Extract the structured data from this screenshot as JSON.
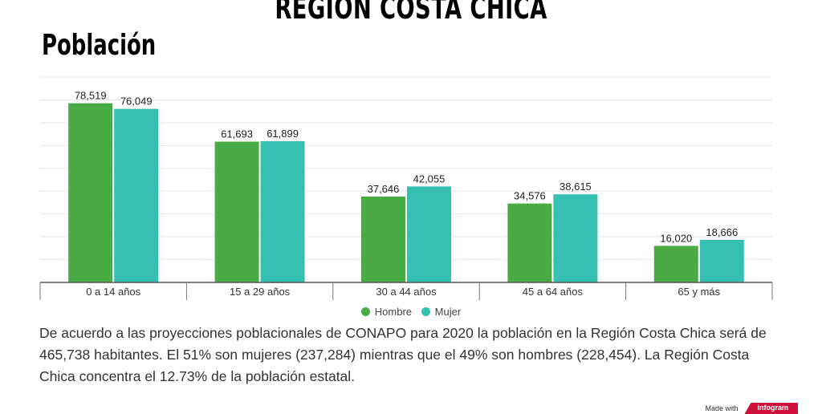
{
  "header": {
    "region_title": "REGION COSTA CHICA",
    "section_title": "Población"
  },
  "chart_data": {
    "type": "bar",
    "categories": [
      "0 a 14 años",
      "15 a 29 años",
      "30 a 44 años",
      "45 a 64 años",
      "65 y más"
    ],
    "series": [
      {
        "name": "Hombre",
        "values": [
          78519,
          61693,
          37646,
          34576,
          16020
        ],
        "color": "#4aab44"
      },
      {
        "name": "Mujer",
        "values": [
          76049,
          61899,
          42055,
          38615,
          18666
        ],
        "color": "#36bfb3"
      }
    ],
    "value_labels": [
      [
        "78,519",
        "61,693",
        "37,646",
        "34,576",
        "16,020"
      ],
      [
        "76,049",
        "61,899",
        "42,055",
        "38,615",
        "18,666"
      ]
    ],
    "ylim": [
      0,
      90000
    ],
    "grid": true,
    "legend_position": "bottom-center"
  },
  "description": "De acuerdo a las proyecciones poblacionales de CONAPO para 2020 la población en la Región Costa Chica será de 465,738  habitantes. El 51% son mujeres (237,284)  mientras que el 49% son hombres (228,454). La Región Costa Chica concentra el 12.73% de la población estatal.",
  "footer": {
    "made_with": "Made with",
    "brand": "infogram"
  }
}
